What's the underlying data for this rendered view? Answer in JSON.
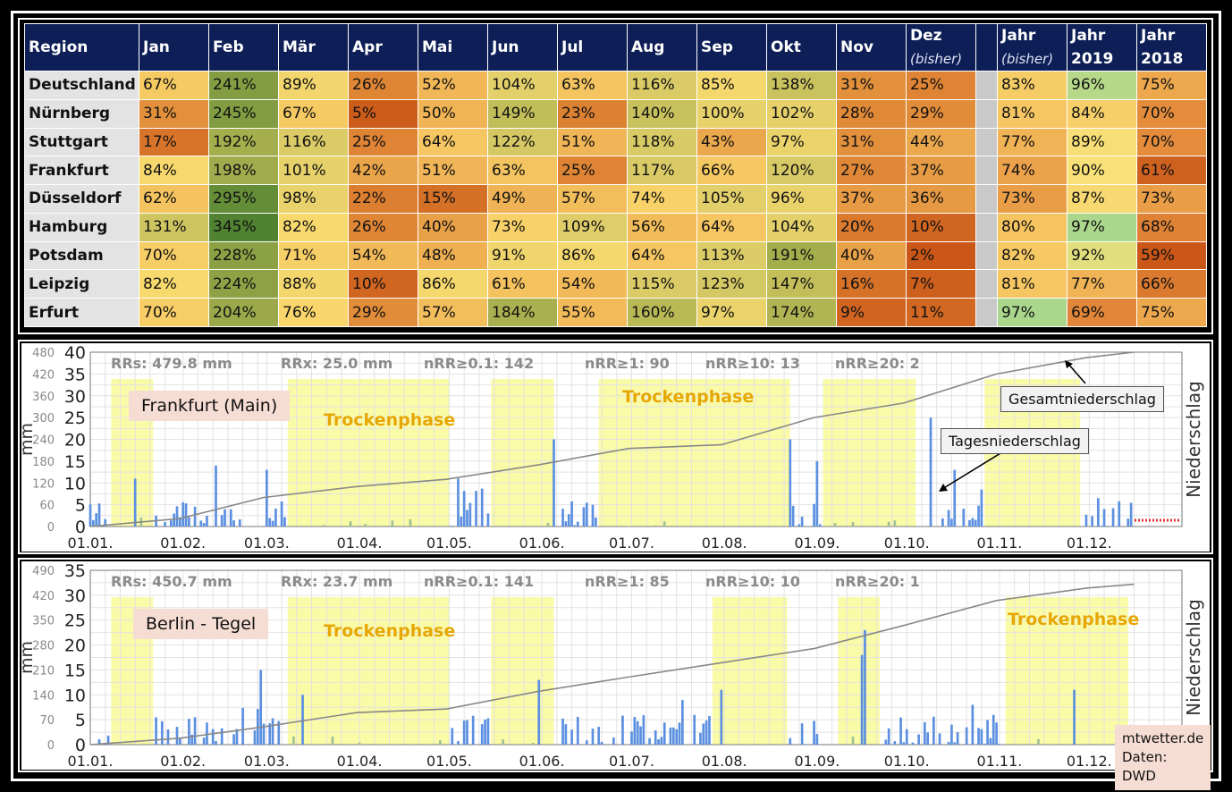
{
  "table": {
    "header": [
      "Region",
      "Jan",
      "Feb",
      "Mär",
      "Apr",
      "Mai",
      "Jun",
      "Jul",
      "Aug",
      "Sep",
      "Okt",
      "Nov",
      "Dez",
      "",
      "Jahr",
      "Jahr",
      "Jahr"
    ],
    "header_sub": [
      "",
      "",
      "",
      "",
      "",
      "",
      "",
      "",
      "",
      "",
      "",
      "",
      "(bisher)",
      "",
      "(bisher)",
      "2019",
      "2018"
    ],
    "rows": [
      {
        "region": "Deutschland",
        "values": [
          "67%",
          "241%",
          "89%",
          "26%",
          "52%",
          "104%",
          "63%",
          "116%",
          "85%",
          "138%",
          "31%",
          "25%",
          "",
          "83%",
          "96%",
          "75%"
        ]
      },
      {
        "region": "Nürnberg",
        "values": [
          "31%",
          "245%",
          "67%",
          "5%",
          "50%",
          "149%",
          "23%",
          "140%",
          "100%",
          "102%",
          "28%",
          "29%",
          "",
          "81%",
          "84%",
          "70%"
        ]
      },
      {
        "region": "Stuttgart",
        "values": [
          "17%",
          "192%",
          "116%",
          "25%",
          "64%",
          "122%",
          "51%",
          "118%",
          "43%",
          "97%",
          "31%",
          "44%",
          "",
          "77%",
          "89%",
          "70%"
        ]
      },
      {
        "region": "Frankfurt",
        "values": [
          "84%",
          "198%",
          "101%",
          "42%",
          "51%",
          "63%",
          "25%",
          "117%",
          "66%",
          "120%",
          "27%",
          "37%",
          "",
          "74%",
          "90%",
          "61%"
        ]
      },
      {
        "region": "Düsseldorf",
        "values": [
          "62%",
          "295%",
          "98%",
          "22%",
          "15%",
          "49%",
          "57%",
          "74%",
          "105%",
          "96%",
          "37%",
          "36%",
          "",
          "73%",
          "87%",
          "73%"
        ]
      },
      {
        "region": "Hamburg",
        "values": [
          "131%",
          "345%",
          "82%",
          "26%",
          "40%",
          "73%",
          "109%",
          "56%",
          "64%",
          "104%",
          "20%",
          "10%",
          "",
          "80%",
          "97%",
          "68%"
        ]
      },
      {
        "region": "Potsdam",
        "values": [
          "70%",
          "228%",
          "71%",
          "54%",
          "48%",
          "91%",
          "86%",
          "64%",
          "113%",
          "191%",
          "40%",
          "2%",
          "",
          "82%",
          "92%",
          "59%"
        ]
      },
      {
        "region": "Leipzig",
        "values": [
          "82%",
          "224%",
          "88%",
          "10%",
          "86%",
          "61%",
          "54%",
          "115%",
          "123%",
          "147%",
          "16%",
          "7%",
          "",
          "81%",
          "77%",
          "66%"
        ]
      },
      {
        "region": "Erfurt",
        "values": [
          "70%",
          "204%",
          "76%",
          "29%",
          "57%",
          "184%",
          "55%",
          "160%",
          "97%",
          "174%",
          "9%",
          "11%",
          "",
          "97%",
          "69%",
          "75%"
        ]
      }
    ]
  },
  "charts": [
    {
      "station": "Frankfurt (Main)",
      "stats": [
        "RRs: 479.8 mm",
        "RRx: 25.0 mm",
        "nRR≥0.1: 142",
        "nRR≥1: 90",
        "nRR≥10: 13",
        "nRR≥20: 2"
      ],
      "phase_label": "Trockenphase",
      "callout_total": "Gesamtniederschlag",
      "callout_daily": "Tagesniederschlag",
      "ylabel_left": "mm",
      "ylabel_right": "Niederschlag",
      "daily_ticks": [
        "0",
        "5",
        "10",
        "15",
        "20",
        "25",
        "30",
        "35",
        "40"
      ],
      "total_ticks": [
        "0",
        "60",
        "120",
        "180",
        "240",
        "300",
        "360",
        "420",
        "480"
      ],
      "x_ticks": [
        "01.01.",
        "01.02.",
        "01.03.",
        "01.04.",
        "01.05.",
        "01.06.",
        "01.07.",
        "01.08.",
        "01.09.",
        "01.10.",
        "01.11.",
        "01.12."
      ],
      "dry_phases": [
        [
          "01-08",
          "01-22"
        ],
        [
          "03-08",
          "05-01"
        ],
        [
          "05-15",
          "06-05"
        ],
        [
          "06-20",
          "08-23"
        ],
        [
          "09-03",
          "10-04"
        ],
        [
          "10-27",
          "11-28"
        ]
      ],
      "daily_peaks": [
        {
          "date": "01-16",
          "mm": 11
        },
        {
          "date": "02-12",
          "mm": 14
        },
        {
          "date": "03-01",
          "mm": 13
        },
        {
          "date": "05-04",
          "mm": 11
        },
        {
          "date": "06-05",
          "mm": 20
        },
        {
          "date": "08-23",
          "mm": 20
        },
        {
          "date": "09-01",
          "mm": 15
        },
        {
          "date": "10-09",
          "mm": 25
        },
        {
          "date": "10-17",
          "mm": 13
        }
      ],
      "total_series": [
        {
          "date": "01-01",
          "mm": 0
        },
        {
          "date": "01-31",
          "mm": 22
        },
        {
          "date": "02-28",
          "mm": 80
        },
        {
          "date": "03-31",
          "mm": 110
        },
        {
          "date": "04-30",
          "mm": 130
        },
        {
          "date": "05-31",
          "mm": 170
        },
        {
          "date": "06-30",
          "mm": 215
        },
        {
          "date": "07-31",
          "mm": 225
        },
        {
          "date": "08-31",
          "mm": 300
        },
        {
          "date": "09-30",
          "mm": 340
        },
        {
          "date": "10-31",
          "mm": 420
        },
        {
          "date": "11-30",
          "mm": 465
        },
        {
          "date": "12-16",
          "mm": 480
        }
      ]
    },
    {
      "station": "Berlin - Tegel",
      "stats": [
        "RRs: 450.7 mm",
        "RRx: 23.7 mm",
        "nRR≥0.1: 141",
        "nRR≥1: 85",
        "nRR≥10: 10",
        "nRR≥20: 1"
      ],
      "phase_label": "Trockenphase",
      "ylabel_left": "mm",
      "ylabel_right": "Niederschlag",
      "daily_ticks": [
        "0",
        "5",
        "10",
        "15",
        "20",
        "25",
        "30",
        "35"
      ],
      "total_ticks": [
        "0",
        "70",
        "140",
        "210",
        "280",
        "350",
        "420",
        "490"
      ],
      "x_ticks": [
        "01.01.",
        "01.02.",
        "01.03.",
        "01.04.",
        "01.05.",
        "01.06.",
        "01.07.",
        "01.08.",
        "01.09.",
        "01.10.",
        "01.11.",
        "01.12."
      ],
      "dry_phases": [
        [
          "01-08",
          "01-22"
        ],
        [
          "03-08",
          "05-01"
        ],
        [
          "05-15",
          "06-05"
        ],
        [
          "07-28",
          "08-22"
        ],
        [
          "09-08",
          "09-22"
        ],
        [
          "11-03",
          "12-14"
        ]
      ],
      "daily_peaks": [
        {
          "date": "02-27",
          "mm": 15
        },
        {
          "date": "03-13",
          "mm": 10
        },
        {
          "date": "05-31",
          "mm": 13
        },
        {
          "date": "07-31",
          "mm": 11
        },
        {
          "date": "09-16",
          "mm": 18
        },
        {
          "date": "09-17",
          "mm": 23
        },
        {
          "date": "10-23",
          "mm": 8
        },
        {
          "date": "11-26",
          "mm": 11
        }
      ],
      "total_series": [
        {
          "date": "01-01",
          "mm": 0
        },
        {
          "date": "01-31",
          "mm": 18
        },
        {
          "date": "02-28",
          "mm": 50
        },
        {
          "date": "03-31",
          "mm": 90
        },
        {
          "date": "04-30",
          "mm": 100
        },
        {
          "date": "05-31",
          "mm": 150
        },
        {
          "date": "06-30",
          "mm": 190
        },
        {
          "date": "07-31",
          "mm": 230
        },
        {
          "date": "08-31",
          "mm": 270
        },
        {
          "date": "09-30",
          "mm": 335
        },
        {
          "date": "10-31",
          "mm": 405
        },
        {
          "date": "11-30",
          "mm": 440
        },
        {
          "date": "12-16",
          "mm": 451
        }
      ]
    }
  ],
  "credit": {
    "line1": "mtwetter.de",
    "line2": "Daten: DWD"
  },
  "colors": {
    "header": "#0e1f57",
    "bar": "#5b8fe0",
    "bar_dry": "#9fbf9a",
    "dry_phase": "#fafba6",
    "total_line": "#888888",
    "phase_text": "#e6a700"
  }
}
